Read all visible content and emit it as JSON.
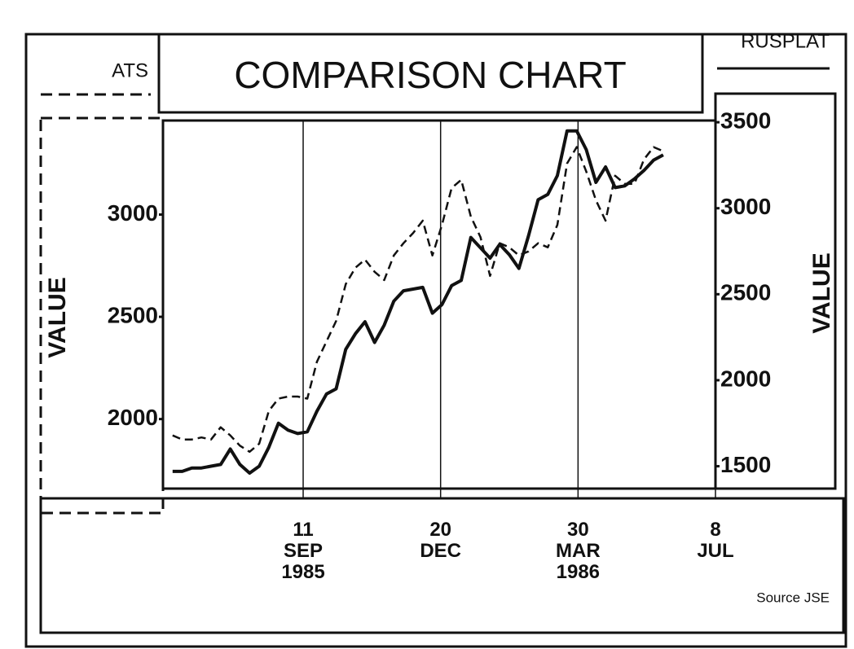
{
  "chart_data": {
    "type": "line",
    "title": "COMPARISON CHART",
    "ylabel": "VALUE",
    "y2label": "VALUE",
    "source": "Source JSE",
    "x": [
      "1985-06-08",
      "1985-06-15",
      "1985-06-22",
      "1985-06-29",
      "1985-07-06",
      "1985-07-13",
      "1985-07-20",
      "1985-07-27",
      "1985-08-03",
      "1985-08-10",
      "1985-08-17",
      "1985-08-24",
      "1985-08-31",
      "1985-09-07",
      "1985-09-14",
      "1985-09-21",
      "1985-09-28",
      "1985-10-05",
      "1985-10-12",
      "1985-10-19",
      "1985-10-26",
      "1985-11-02",
      "1985-11-09",
      "1985-11-16",
      "1985-11-23",
      "1985-11-30",
      "1985-12-07",
      "1985-12-14",
      "1985-12-21",
      "1985-12-28",
      "1986-01-04",
      "1986-01-11",
      "1986-01-18",
      "1986-01-25",
      "1986-02-01",
      "1986-02-08",
      "1986-02-15",
      "1986-02-22",
      "1986-03-01",
      "1986-03-08",
      "1986-03-15",
      "1986-03-22",
      "1986-03-29",
      "1986-04-05",
      "1986-04-12",
      "1986-04-19",
      "1986-04-26",
      "1986-05-03",
      "1986-05-10",
      "1986-05-17",
      "1986-05-24",
      "1986-05-31"
    ],
    "series": [
      {
        "name": "ATS",
        "color": "#111111",
        "dash": true,
        "axis": "y",
        "values": [
          1920,
          1900,
          1900,
          1910,
          1900,
          1960,
          1920,
          1870,
          1840,
          1880,
          2040,
          2100,
          2110,
          2110,
          2100,
          2280,
          2380,
          2480,
          2660,
          2740,
          2780,
          2720,
          2680,
          2800,
          2860,
          2910,
          2970,
          2800,
          2950,
          3130,
          3170,
          2990,
          2890,
          2700,
          2860,
          2840,
          2800,
          2820,
          2860,
          2840,
          2950,
          3250,
          3330,
          3210,
          3070,
          2970,
          3190,
          3150,
          3150,
          3270,
          3330,
          3310
        ]
      },
      {
        "name": "RUSPLAT",
        "color": "#111111",
        "dash": false,
        "axis": "y2",
        "values": [
          1470,
          1470,
          1490,
          1490,
          1500,
          1510,
          1600,
          1510,
          1460,
          1500,
          1610,
          1750,
          1710,
          1690,
          1700,
          1820,
          1920,
          1950,
          2180,
          2270,
          2340,
          2220,
          2320,
          2460,
          2520,
          2530,
          2540,
          2390,
          2440,
          2550,
          2580,
          2830,
          2770,
          2710,
          2790,
          2730,
          2650,
          2840,
          3050,
          3080,
          3190,
          3450,
          3450,
          3340,
          3150,
          3240,
          3120,
          3130,
          3170,
          3220,
          3280,
          3310
        ]
      }
    ],
    "xlim": [
      "1985-06-01",
      "1986-07-08"
    ],
    "xticks": [
      {
        "value": "1985-09-11",
        "label": "11 SEP 1985"
      },
      {
        "value": "1985-12-20",
        "label": "20 DEC"
      },
      {
        "value": "1986-03-30",
        "label": "30 MAR 1986"
      },
      {
        "value": "1986-07-08",
        "label": "8 JUL"
      }
    ],
    "ylim": [
      1660,
      3460
    ],
    "yticks": [
      2000,
      2500,
      3000
    ],
    "y2lim": [
      1370,
      3510
    ],
    "y2ticks": [
      1500,
      2000,
      2500,
      3000,
      3500
    ],
    "grid": true
  }
}
